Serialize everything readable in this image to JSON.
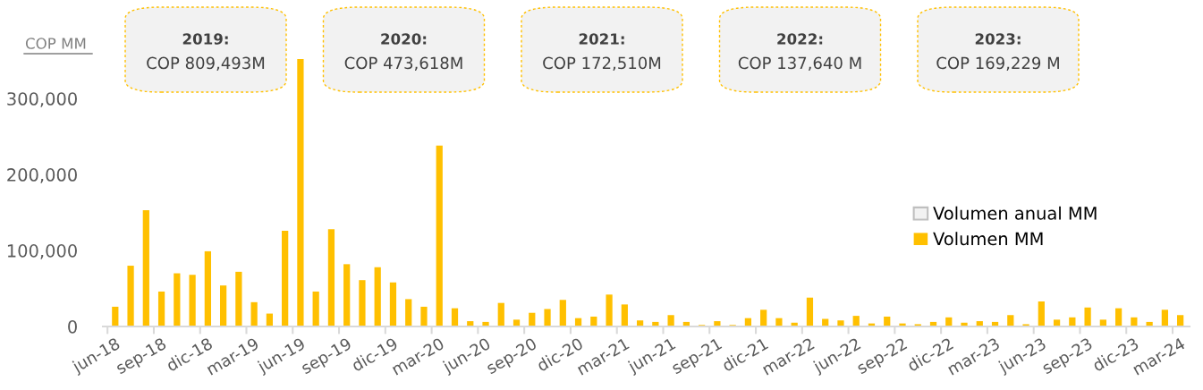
{
  "chart_data": {
    "type": "bar",
    "ylabel": "COP MM",
    "categories": [
      "jun-18",
      null,
      null,
      "sep-18",
      null,
      null,
      "dic-18",
      null,
      null,
      "mar-19",
      null,
      null,
      "jun-19",
      null,
      null,
      "sep-19",
      null,
      null,
      "dic-19",
      null,
      null,
      "mar-20",
      null,
      null,
      "jun-20",
      null,
      null,
      "sep-20",
      null,
      null,
      "dic-20",
      null,
      null,
      "mar-21",
      null,
      null,
      "jun-21",
      null,
      null,
      "sep-21",
      null,
      null,
      "dic-21",
      null,
      null,
      "mar-22",
      null,
      null,
      "jun-22",
      null,
      null,
      "sep-22",
      null,
      null,
      "dic-22",
      null,
      null,
      "mar-23",
      null,
      null,
      "jun-23",
      null,
      null,
      "sep-23",
      null,
      null,
      "dic-23",
      null,
      null,
      "mar-24"
    ],
    "series": [
      {
        "name": "Volumen anual MM",
        "color": "#f2f2f2",
        "values": [
          null,
          null,
          null,
          null,
          null,
          null,
          null,
          null,
          null,
          null,
          null,
          null,
          null,
          null,
          null,
          null,
          null,
          null,
          null,
          null,
          null,
          null,
          null,
          null,
          null,
          null,
          null,
          null,
          null,
          null,
          null,
          null,
          null,
          null,
          null,
          null,
          null,
          null,
          null,
          null,
          null,
          null,
          null,
          null,
          null,
          null,
          null,
          null,
          null,
          null,
          null,
          null,
          null,
          null,
          null,
          null,
          null,
          null,
          null,
          null,
          null,
          null,
          null,
          null,
          null,
          null,
          null,
          null,
          null,
          null
        ]
      },
      {
        "name": "Volumen MM",
        "color": "#ffc000",
        "values": [
          26000,
          80000,
          153000,
          46000,
          70000,
          68000,
          99000,
          54000,
          72000,
          32000,
          17000,
          126000,
          352000,
          46000,
          128000,
          82000,
          61000,
          78000,
          58000,
          36000,
          26000,
          238000,
          24000,
          7000,
          6000,
          31000,
          9000,
          18000,
          23000,
          35000,
          11000,
          13000,
          42000,
          29000,
          8000,
          6000,
          15000,
          6000,
          2000,
          7000,
          2000,
          11000,
          22000,
          11000,
          5000,
          38000,
          10000,
          8000,
          14000,
          4000,
          13000,
          4000,
          3000,
          6000,
          12000,
          5000,
          7000,
          6000,
          15000,
          3000,
          33000,
          9000,
          12000,
          25000,
          9000,
          24000,
          12000,
          6000,
          22000,
          15000
        ]
      }
    ],
    "yticks": [
      0,
      {
        "value": 100000,
        "label": "100,000"
      },
      {
        "value": 200000,
        "label": "200,000"
      },
      {
        "value": 300000,
        "label": "300,000"
      }
    ],
    "ylim": [
      0,
      352000
    ],
    "annotations": [
      "2019:\nCOP 809,493M",
      "2020:\nCOP 473,618M",
      "2021:\nCOP 172,510M",
      "2022:\nCOP 137,640 M",
      "2023:\nCOP 169,229 M"
    ],
    "grid": false,
    "legend": "right"
  }
}
